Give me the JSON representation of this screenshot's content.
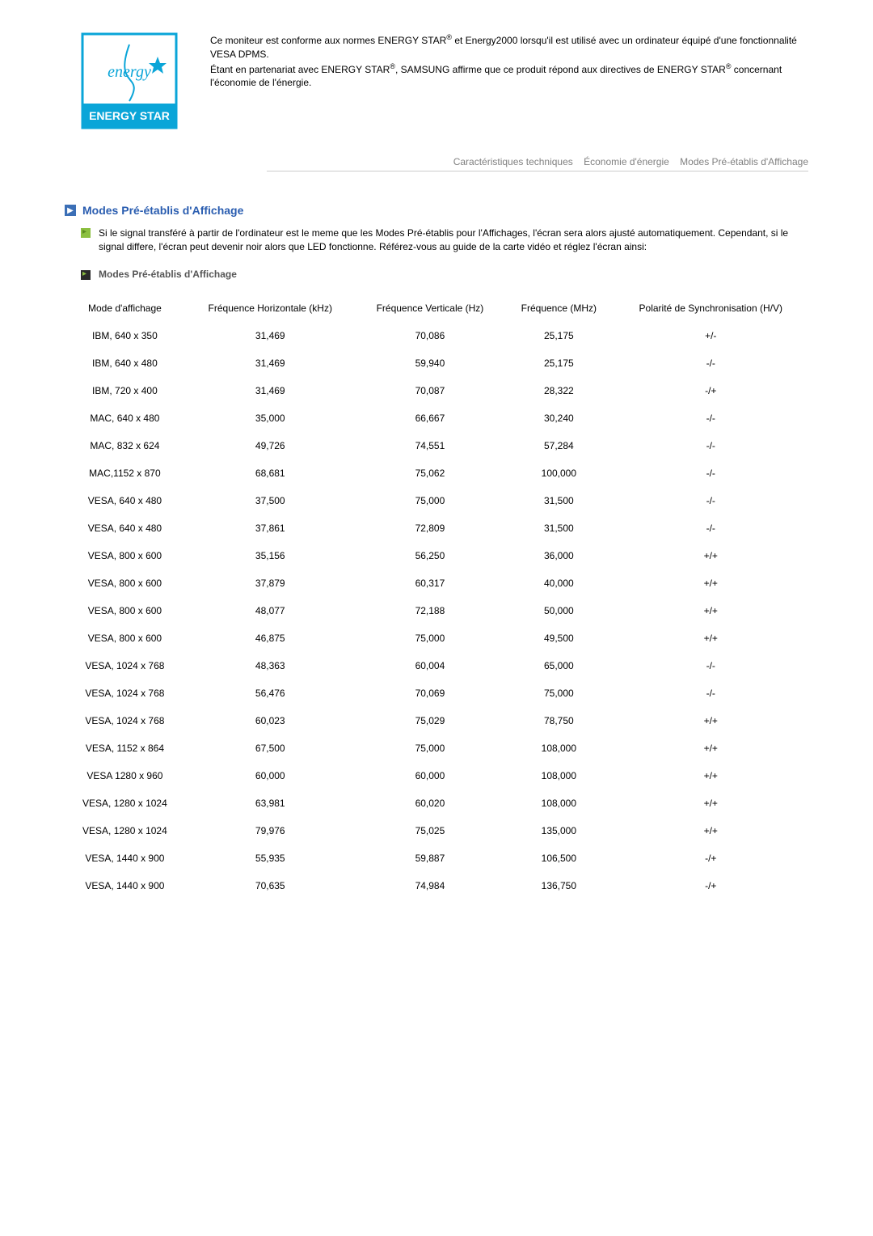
{
  "top": {
    "para1_a": "Ce moniteur est conforme aux normes ENERGY STAR",
    "para1_b": " et Energy2000 lorsqu'il est utilisé avec un ordinateur équipé d'une fonctionnalité VESA DPMS.",
    "para2_a": "Étant en partenariat avec ENERGY STAR",
    "para2_b": ", SAMSUNG affirme que ce produit répond aux directives de ENERGY STAR",
    "para2_c": " concernant l'économie de l'énergie.",
    "reg": "®"
  },
  "tabs": {
    "t1": "Caractéristiques techniques",
    "t2": "Économie d'énergie",
    "t3": "Modes Pré-établis d'Affichage"
  },
  "section": {
    "title": "Modes Pré-établis d'Affichage",
    "body": "Si le signal transféré à partir de l'ordinateur est le meme que les Modes Pré-établis pour l'Affichages, l'écran sera alors ajusté automatiquement. Cependant, si le signal differe, l'écran peut devenir noir alors que LED fonctionne. Référez-vous au guide de la carte vidéo et réglez l'écran ainsi:",
    "subheading": "Modes Pré-établis d'Affichage"
  },
  "table": {
    "headers": {
      "c1": "Mode d'affichage",
      "c2": "Fréquence Horizontale (kHz)",
      "c3": "Fréquence Verticale (Hz)",
      "c4": "Fréquence (MHz)",
      "c5": "Polarité de Synchronisation (H/V)"
    },
    "rows": [
      {
        "c1": "IBM, 640 x 350",
        "c2": "31,469",
        "c3": "70,086",
        "c4": "25,175",
        "c5": "+/-"
      },
      {
        "c1": "IBM, 640 x 480",
        "c2": "31,469",
        "c3": "59,940",
        "c4": "25,175",
        "c5": "-/-"
      },
      {
        "c1": "IBM, 720 x 400",
        "c2": "31,469",
        "c3": "70,087",
        "c4": "28,322",
        "c5": "-/+"
      },
      {
        "c1": "MAC, 640 x 480",
        "c2": "35,000",
        "c3": "66,667",
        "c4": "30,240",
        "c5": "-/-"
      },
      {
        "c1": "MAC, 832 x 624",
        "c2": "49,726",
        "c3": "74,551",
        "c4": "57,284",
        "c5": "-/-"
      },
      {
        "c1": "MAC,1152 x 870",
        "c2": "68,681",
        "c3": "75,062",
        "c4": "100,000",
        "c5": "-/-"
      },
      {
        "c1": "VESA, 640 x 480",
        "c2": "37,500",
        "c3": "75,000",
        "c4": "31,500",
        "c5": "-/-"
      },
      {
        "c1": "VESA, 640 x 480",
        "c2": "37,861",
        "c3": "72,809",
        "c4": "31,500",
        "c5": "-/-"
      },
      {
        "c1": "VESA, 800 x 600",
        "c2": "35,156",
        "c3": "56,250",
        "c4": "36,000",
        "c5": "+/+"
      },
      {
        "c1": "VESA, 800 x 600",
        "c2": "37,879",
        "c3": "60,317",
        "c4": "40,000",
        "c5": "+/+"
      },
      {
        "c1": "VESA, 800 x 600",
        "c2": "48,077",
        "c3": "72,188",
        "c4": "50,000",
        "c5": "+/+"
      },
      {
        "c1": "VESA, 800 x 600",
        "c2": "46,875",
        "c3": "75,000",
        "c4": "49,500",
        "c5": "+/+"
      },
      {
        "c1": "VESA, 1024 x 768",
        "c2": "48,363",
        "c3": "60,004",
        "c4": "65,000",
        "c5": "-/-"
      },
      {
        "c1": "VESA, 1024 x 768",
        "c2": "56,476",
        "c3": "70,069",
        "c4": "75,000",
        "c5": "-/-"
      },
      {
        "c1": "VESA, 1024 x 768",
        "c2": "60,023",
        "c3": "75,029",
        "c4": "78,750",
        "c5": "+/+"
      },
      {
        "c1": "VESA, 1152 x 864",
        "c2": "67,500",
        "c3": "75,000",
        "c4": "108,000",
        "c5": "+/+"
      },
      {
        "c1": "VESA 1280 x 960",
        "c2": "60,000",
        "c3": "60,000",
        "c4": "108,000",
        "c5": "+/+"
      },
      {
        "c1": "VESA, 1280 x 1024",
        "c2": "63,981",
        "c3": "60,020",
        "c4": "108,000",
        "c5": "+/+"
      },
      {
        "c1": "VESA, 1280 x 1024",
        "c2": "79,976",
        "c3": "75,025",
        "c4": "135,000",
        "c5": "+/+"
      },
      {
        "c1": "VESA, 1440 x 900",
        "c2": "55,935",
        "c3": "59,887",
        "c4": "106,500",
        "c5": "-/+"
      },
      {
        "c1": "VESA, 1440 x 900",
        "c2": "70,635",
        "c3": "74,984",
        "c4": "136,750",
        "c5": "-/+"
      }
    ]
  }
}
